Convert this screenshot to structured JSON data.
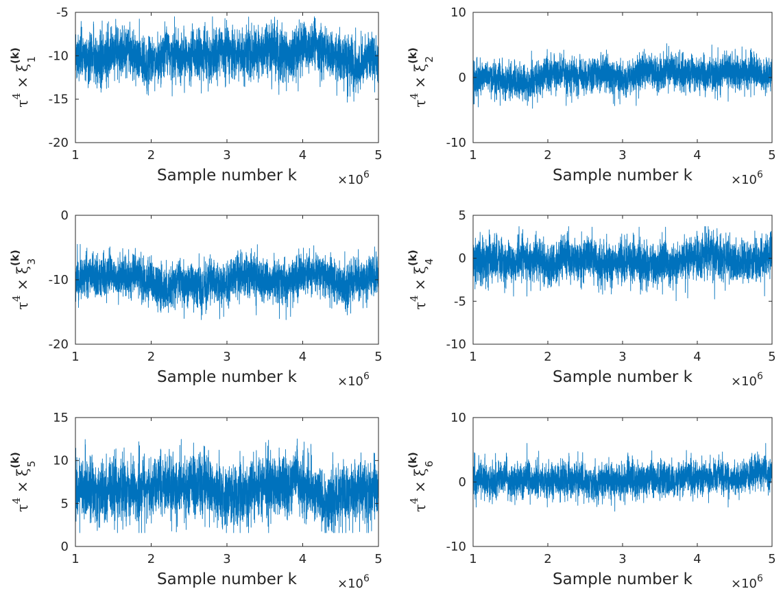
{
  "chart_data": [
    {
      "type": "line",
      "ylabel": "τ4 × ξ1(k)",
      "ylabel_parts": {
        "tau": "τ",
        "power": "4",
        "times": "×",
        "xi": "ξ",
        "sub": "1",
        "sup": "(k)"
      },
      "xlabel": "Sample number k",
      "x_multiplier": "×10",
      "x_multiplier_exp": "6",
      "xlim": [
        1,
        5
      ],
      "ylim": [
        -20,
        -5
      ],
      "xticks": [
        1,
        2,
        3,
        4,
        5
      ],
      "xtick_labels": [
        "1",
        "2",
        "3",
        "4",
        "5"
      ],
      "yticks": [
        -20,
        -15,
        -10,
        -5
      ],
      "ytick_labels": [
        "-20",
        "-15",
        "-10",
        "-5"
      ],
      "series": [
        {
          "color": "#0072BD",
          "mean": -9.8,
          "spread": 1.4,
          "min": -15.4,
          "max": -5.5,
          "x_range": [
            1,
            5
          ]
        }
      ]
    },
    {
      "type": "line",
      "ylabel": "τ4 × ξ2(k)",
      "ylabel_parts": {
        "tau": "τ",
        "power": "4",
        "times": "×",
        "xi": "ξ",
        "sub": "2",
        "sup": "(k)"
      },
      "xlabel": "Sample number k",
      "x_multiplier": "×10",
      "x_multiplier_exp": "6",
      "xlim": [
        1,
        5
      ],
      "ylim": [
        -10,
        10
      ],
      "xticks": [
        1,
        2,
        3,
        4,
        5
      ],
      "xtick_labels": [
        "1",
        "2",
        "3",
        "4",
        "5"
      ],
      "yticks": [
        -10,
        0,
        10
      ],
      "ytick_labels": [
        "-10",
        "0",
        "10"
      ],
      "series": [
        {
          "color": "#0072BD",
          "mean": 0.0,
          "spread": 1.3,
          "min": -5.9,
          "max": 5.6,
          "x_range": [
            1,
            5
          ]
        }
      ]
    },
    {
      "type": "line",
      "ylabel": "τ4 × ξ3(k)",
      "ylabel_parts": {
        "tau": "τ",
        "power": "4",
        "times": "×",
        "xi": "ξ",
        "sub": "3",
        "sup": "(k)"
      },
      "xlabel": "Sample number k",
      "x_multiplier": "×10",
      "x_multiplier_exp": "6",
      "xlim": [
        1,
        5
      ],
      "ylim": [
        -20,
        0
      ],
      "xticks": [
        1,
        2,
        3,
        4,
        5
      ],
      "xtick_labels": [
        "1",
        "2",
        "3",
        "4",
        "5"
      ],
      "yticks": [
        -20,
        -10,
        0
      ],
      "ytick_labels": [
        "-20",
        "-10",
        "0"
      ],
      "series": [
        {
          "color": "#0072BD",
          "mean": -10.0,
          "spread": 1.6,
          "min": -16.2,
          "max": -4.5,
          "x_range": [
            1,
            5
          ]
        }
      ]
    },
    {
      "type": "line",
      "ylabel": "τ4 × ξ4(k)",
      "ylabel_parts": {
        "tau": "τ",
        "power": "4",
        "times": "×",
        "xi": "ξ",
        "sub": "4",
        "sup": "(k)"
      },
      "xlabel": "Sample number k",
      "x_multiplier": "×10",
      "x_multiplier_exp": "6",
      "xlim": [
        1,
        5
      ],
      "ylim": [
        -10,
        5
      ],
      "xticks": [
        1,
        2,
        3,
        4,
        5
      ],
      "xtick_labels": [
        "1",
        "2",
        "3",
        "4",
        "5"
      ],
      "yticks": [
        -10,
        -5,
        0,
        5
      ],
      "ytick_labels": [
        "-10",
        "-5",
        "0",
        "5"
      ],
      "series": [
        {
          "color": "#0072BD",
          "mean": -0.5,
          "spread": 1.2,
          "min": -5.6,
          "max": 3.7,
          "x_range": [
            1,
            5
          ]
        }
      ]
    },
    {
      "type": "line",
      "ylabel": "τ4 × ξ5(k)",
      "ylabel_parts": {
        "tau": "τ",
        "power": "4",
        "times": "×",
        "xi": "ξ",
        "sub": "5",
        "sup": "(k)"
      },
      "xlabel": "Sample number k",
      "x_multiplier": "×10",
      "x_multiplier_exp": "6",
      "xlim": [
        1,
        5
      ],
      "ylim": [
        0,
        15
      ],
      "xticks": [
        1,
        2,
        3,
        4,
        5
      ],
      "xtick_labels": [
        "1",
        "2",
        "3",
        "4",
        "5"
      ],
      "yticks": [
        0,
        5,
        10,
        15
      ],
      "ytick_labels": [
        "0",
        "5",
        "10",
        "15"
      ],
      "series": [
        {
          "color": "#0072BD",
          "mean": 6.6,
          "spread": 1.7,
          "min": 1.6,
          "max": 13.3,
          "x_range": [
            1,
            5
          ]
        }
      ]
    },
    {
      "type": "line",
      "ylabel": "τ4 × ξ6(k)",
      "ylabel_parts": {
        "tau": "τ",
        "power": "4",
        "times": "×",
        "xi": "ξ",
        "sub": "6",
        "sup": "(k)"
      },
      "xlabel": "Sample number k",
      "x_multiplier": "×10",
      "x_multiplier_exp": "6",
      "xlim": [
        1,
        5
      ],
      "ylim": [
        -10,
        10
      ],
      "xticks": [
        1,
        2,
        3,
        4,
        5
      ],
      "xtick_labels": [
        "1",
        "2",
        "3",
        "4",
        "5"
      ],
      "yticks": [
        -10,
        0,
        10
      ],
      "ytick_labels": [
        "-10",
        "0",
        "10"
      ],
      "series": [
        {
          "color": "#0072BD",
          "mean": 0.6,
          "spread": 1.3,
          "min": -5.4,
          "max": 6.0,
          "x_range": [
            1,
            5
          ]
        }
      ]
    }
  ]
}
